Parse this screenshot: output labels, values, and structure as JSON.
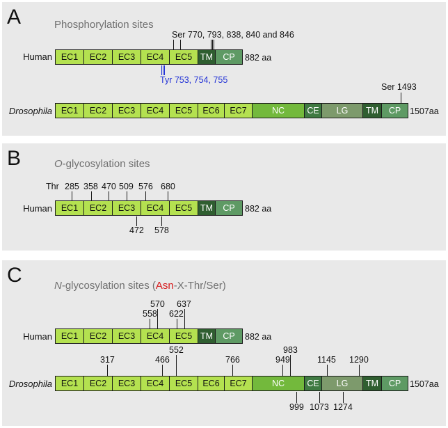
{
  "panelA": {
    "letter": "A",
    "title": "Phosphorylation sites",
    "human": {
      "species": "Human",
      "domains": [
        "EC1",
        "EC2",
        "EC3",
        "EC4",
        "EC5",
        "TM",
        "CP"
      ],
      "length": "882 aa",
      "ser_label": "Ser 770, 793, 838, 840  and 846",
      "tyr_label": "Tyr 753, 754, 755"
    },
    "dros": {
      "species": "Drosophila",
      "domains": [
        "EC1",
        "EC2",
        "EC3",
        "EC4",
        "EC5",
        "EC6",
        "EC7",
        "NC",
        "CE",
        "LG",
        "TM",
        "CP"
      ],
      "length": "1507aa",
      "ser_label": "Ser 1493"
    }
  },
  "panelB": {
    "letter": "B",
    "title_italic": "O",
    "title_rest": "-glycosylation sites",
    "human": {
      "species": "Human",
      "domains": [
        "EC1",
        "EC2",
        "EC3",
        "EC4",
        "EC5",
        "TM",
        "CP"
      ],
      "length": "882 aa",
      "thr_prefix": "Thr",
      "top_sites": [
        "285",
        "358",
        "470",
        "509",
        "576",
        "680"
      ],
      "bottom_sites": [
        "472",
        "578"
      ]
    }
  },
  "panelC": {
    "letter": "C",
    "title_italic": "N",
    "title_mid": "-glycosylation sites (",
    "title_red": "Asn",
    "title_end": "-X-Thr/Ser)",
    "human": {
      "species": "Human",
      "domains": [
        "EC1",
        "EC2",
        "EC3",
        "EC4",
        "EC5",
        "TM",
        "CP"
      ],
      "length": "882 aa",
      "sites": [
        "558",
        "570",
        "622",
        "637"
      ]
    },
    "dros": {
      "species": "Drosophila",
      "domains": [
        "EC1",
        "EC2",
        "EC3",
        "EC4",
        "EC5",
        "EC6",
        "EC7",
        "NC",
        "CE",
        "LG",
        "TM",
        "CP"
      ],
      "length": "1507aa",
      "top_sites": [
        "317",
        "466",
        "552",
        "766",
        "949",
        "983",
        "1145",
        "1290"
      ],
      "bottom_sites": [
        "999",
        "1073",
        "1274"
      ]
    }
  },
  "colors": {
    "ec": "#b4e150",
    "tm": "#2f5e30",
    "cp": "#5e9a64",
    "nc": "#73b93c",
    "ce": "#3f7a42",
    "lg": "#7d9a6c",
    "tyr": "#1f2fd6",
    "asn": "#d6191b",
    "panel_bg": "#e9e9e9"
  }
}
